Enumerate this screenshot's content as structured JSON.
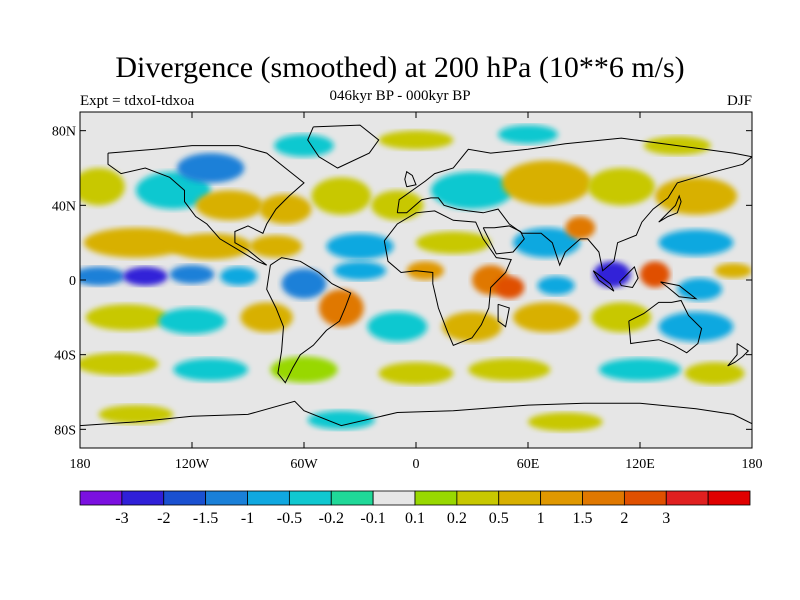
{
  "title": "Divergence (smoothed) at 200 hPa (10**6 m/s)",
  "subtitle": "046kyr BP - 000kyr BP",
  "experiment": "Expt = tdxoI-tdxoa",
  "season": "DJF",
  "map": {
    "projection": "cylindrical-equidistant",
    "lon_range": [
      -180,
      180
    ],
    "lat_range": [
      -90,
      90
    ],
    "background_color": "#e6e6e6",
    "coastline_color": "#000000"
  },
  "axes": {
    "y_ticks": [
      {
        "value": 80,
        "label": "80N"
      },
      {
        "value": 40,
        "label": "40N"
      },
      {
        "value": 0,
        "label": "0"
      },
      {
        "value": -40,
        "label": "40S"
      },
      {
        "value": -80,
        "label": "80S"
      }
    ],
    "x_ticks": [
      {
        "value": -180,
        "label": "180"
      },
      {
        "value": -120,
        "label": "120W"
      },
      {
        "value": -60,
        "label": "60W"
      },
      {
        "value": 0,
        "label": "0"
      },
      {
        "value": 60,
        "label": "60E"
      },
      {
        "value": 120,
        "label": "120E"
      },
      {
        "value": 180,
        "label": "180"
      }
    ]
  },
  "colorbar": {
    "colors": [
      "#7b10e0",
      "#3020d8",
      "#1a50d0",
      "#1a80d8",
      "#10a8e0",
      "#10c8d0",
      "#20d898",
      "#e6e6e6",
      "#98d800",
      "#c8c800",
      "#d8b000",
      "#e09800",
      "#e07800",
      "#e05000",
      "#e02020",
      "#e00000"
    ],
    "labels": [
      "-3",
      "-2",
      "-1.5",
      "-1",
      "-0.5",
      "-0.2",
      "-0.1",
      "0.1",
      "0.2",
      "0.5",
      "1",
      "1.5",
      "2",
      "3"
    ]
  },
  "chart_data": {
    "type": "heatmap",
    "variable": "Divergence (smoothed) at 200 hPa",
    "units": "10**6 m/s",
    "levels": [
      -3,
      -2,
      -1.5,
      -1,
      -0.5,
      -0.2,
      -0.1,
      0.1,
      0.2,
      0.5,
      1,
      1.5,
      2,
      3
    ],
    "anomalies": [
      {
        "lon": 105,
        "lat": 5,
        "value": -3
      },
      {
        "lon": 128,
        "lat": 3,
        "value": 3
      },
      {
        "lon": 45,
        "lat": 0,
        "value": 2
      },
      {
        "lon": 88,
        "lat": 28,
        "value": 2
      },
      {
        "lon": -145,
        "lat": 2,
        "value": -2
      },
      {
        "lon": -40,
        "lat": -15,
        "value": 2
      },
      {
        "lon": -60,
        "lat": 0,
        "value": -1
      },
      {
        "lon": -105,
        "lat": 55,
        "value": -1
      },
      {
        "lon": -25,
        "lat": 5,
        "value": -1
      },
      {
        "lon": 5,
        "lat": 5,
        "value": 1.5
      },
      {
        "lon": -130,
        "lat": 18,
        "value": 1
      },
      {
        "lon": 40,
        "lat": 45,
        "value": -0.5
      }
    ]
  }
}
